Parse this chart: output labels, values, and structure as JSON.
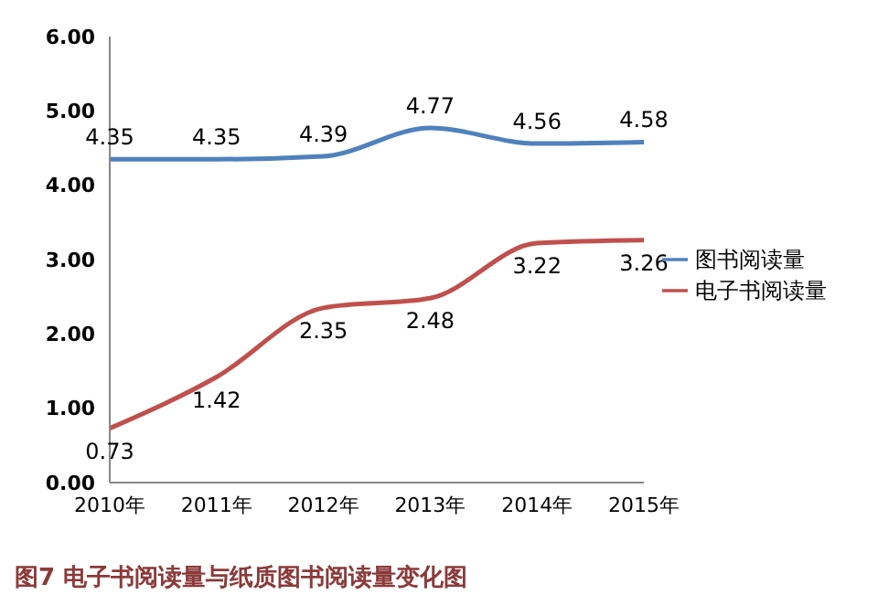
{
  "chart_data": {
    "type": "line",
    "title": "图7 电子书阅读量与纸质图书阅读量变化图",
    "categories": [
      "2010年",
      "2011年",
      "2012年",
      "2013年",
      "2014年",
      "2015年"
    ],
    "series": [
      {
        "name": "图书阅读量",
        "color": "#4f81bd",
        "values": [
          4.35,
          4.35,
          4.39,
          4.77,
          4.56,
          4.58
        ]
      },
      {
        "name": "电子书阅读量",
        "color": "#c0504d",
        "values": [
          0.73,
          1.42,
          2.35,
          2.48,
          3.22,
          3.26
        ]
      }
    ],
    "ylim": [
      0,
      6
    ],
    "yticks": [
      {
        "value": 0,
        "label": "0.00"
      },
      {
        "value": 1,
        "label": "1.00"
      },
      {
        "value": 2,
        "label": "2.00"
      },
      {
        "value": 3,
        "label": "3.00"
      },
      {
        "value": 4,
        "label": "4.00"
      },
      {
        "value": 5,
        "label": "5.00"
      },
      {
        "value": 6,
        "label": "6.00"
      }
    ],
    "grid": false,
    "legend": "right",
    "marker": "none",
    "line_style": "solid",
    "data_labels": true
  }
}
